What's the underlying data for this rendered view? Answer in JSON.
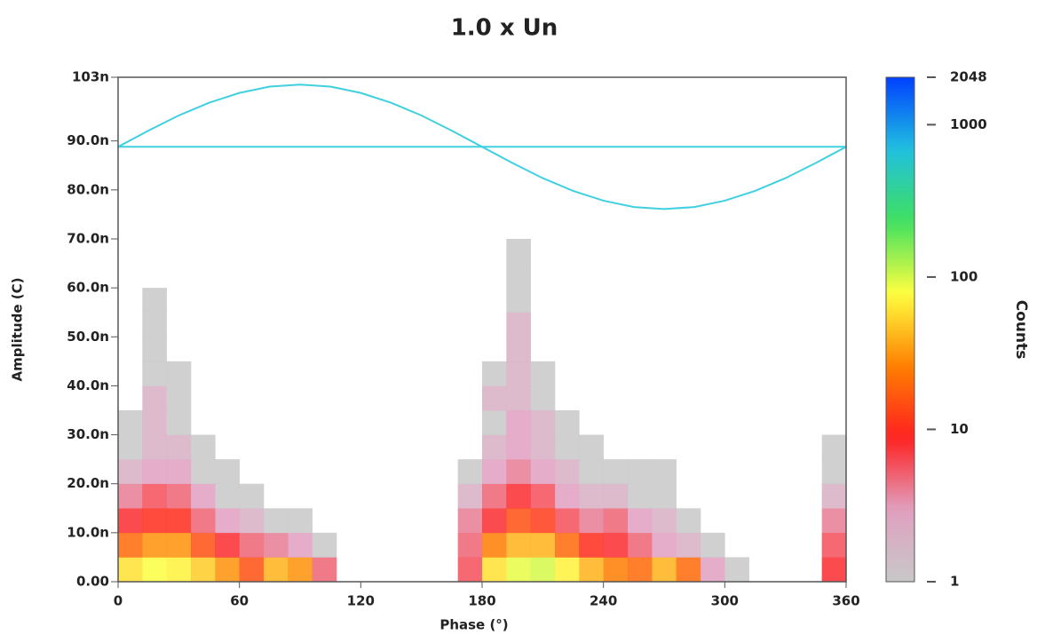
{
  "chart_data": {
    "type": "heatmap",
    "title": "1.0 x Un",
    "x_label": "Phase (°)",
    "y_label": "Amplitude (C)",
    "colorbar_label": "Counts",
    "xlim": [
      0,
      360
    ],
    "xticks": [
      0,
      60,
      120,
      180,
      240,
      300,
      360
    ],
    "ylim": [
      0,
      103
    ],
    "yticks": [
      {
        "value": 0,
        "label": "0.00"
      },
      {
        "value": 10,
        "label": "10.0n"
      },
      {
        "value": 20,
        "label": "20.0n"
      },
      {
        "value": 30,
        "label": "30.0n"
      },
      {
        "value": 40,
        "label": "40.0n"
      },
      {
        "value": 50,
        "label": "50.0n"
      },
      {
        "value": 60,
        "label": "60.0n"
      },
      {
        "value": 70,
        "label": "70.0n"
      },
      {
        "value": 80,
        "label": "80.0n"
      },
      {
        "value": 90,
        "label": "90.0n"
      },
      {
        "value": 103,
        "label": "103n"
      }
    ],
    "zlim": [
      1,
      2048
    ],
    "zticks": [
      1,
      10,
      100,
      1000,
      2048
    ],
    "z_log": true,
    "colormap": [
      "#c8c8c8",
      "#e0a0c0",
      "#ff2020",
      "#ff8000",
      "#ffff40",
      "#40e060",
      "#20c0e0",
      "#0040ff"
    ],
    "x_bins": [
      0,
      12,
      24,
      36,
      48,
      60,
      72,
      84,
      96,
      108,
      120,
      132,
      144,
      156,
      168,
      180,
      192,
      204,
      216,
      228,
      240,
      252,
      264,
      276,
      288,
      300,
      312,
      324,
      336,
      348,
      360
    ],
    "y_bins": [
      0,
      5,
      10,
      15,
      20,
      25,
      30,
      35,
      40,
      45,
      50,
      55,
      60,
      65,
      70
    ],
    "z": [
      [
        60,
        80,
        70,
        50,
        30,
        15,
        40,
        30,
        5,
        null,
        null,
        null,
        null,
        null,
        6,
        60,
        90,
        100,
        70,
        40,
        25,
        20,
        40,
        20,
        3,
        1,
        null,
        null,
        null,
        8
      ],
      [
        20,
        30,
        30,
        15,
        8,
        5,
        4,
        3,
        1,
        null,
        null,
        null,
        null,
        null,
        5,
        25,
        40,
        40,
        20,
        10,
        8,
        5,
        3,
        2,
        1,
        null,
        null,
        null,
        null,
        6
      ],
      [
        8,
        10,
        10,
        5,
        3,
        2,
        1,
        1,
        null,
        null,
        null,
        null,
        null,
        null,
        4,
        8,
        15,
        12,
        6,
        4,
        5,
        3,
        2,
        1,
        null,
        null,
        null,
        null,
        null,
        4
      ],
      [
        4,
        6,
        5,
        3,
        1,
        1,
        null,
        null,
        null,
        null,
        null,
        null,
        null,
        null,
        2,
        5,
        8,
        6,
        3,
        2,
        2,
        1,
        1,
        null,
        null,
        null,
        null,
        null,
        null,
        2
      ],
      [
        2,
        3,
        3,
        1,
        1,
        null,
        null,
        null,
        null,
        null,
        null,
        null,
        null,
        null,
        1,
        3,
        4,
        3,
        2,
        1,
        1,
        1,
        1,
        null,
        null,
        null,
        null,
        null,
        null,
        1
      ],
      [
        1,
        2,
        2,
        1,
        null,
        null,
        null,
        null,
        null,
        null,
        null,
        null,
        null,
        null,
        null,
        2,
        3,
        2,
        1,
        1,
        null,
        null,
        null,
        null,
        null,
        null,
        null,
        null,
        null,
        1
      ],
      [
        1,
        2,
        1,
        null,
        null,
        null,
        null,
        null,
        null,
        null,
        null,
        null,
        null,
        null,
        null,
        1,
        3,
        2,
        1,
        null,
        null,
        null,
        null,
        null,
        null,
        null,
        null,
        null,
        null,
        null
      ],
      [
        null,
        2,
        1,
        null,
        null,
        null,
        null,
        null,
        null,
        null,
        null,
        null,
        null,
        null,
        null,
        2,
        2,
        1,
        null,
        null,
        null,
        null,
        null,
        null,
        null,
        null,
        null,
        null,
        null,
        null
      ],
      [
        null,
        1,
        1,
        null,
        null,
        null,
        null,
        null,
        null,
        null,
        null,
        null,
        null,
        null,
        null,
        1,
        2,
        1,
        null,
        null,
        null,
        null,
        null,
        null,
        null,
        null,
        null,
        null,
        null,
        null
      ],
      [
        null,
        1,
        null,
        null,
        null,
        null,
        null,
        null,
        null,
        null,
        null,
        null,
        null,
        null,
        null,
        null,
        2,
        null,
        null,
        null,
        null,
        null,
        null,
        null,
        null,
        null,
        null,
        null,
        null,
        null
      ],
      [
        null,
        1,
        null,
        null,
        null,
        null,
        null,
        null,
        null,
        null,
        null,
        null,
        null,
        null,
        null,
        null,
        2,
        null,
        null,
        null,
        null,
        null,
        null,
        null,
        null,
        null,
        null,
        null,
        null,
        null
      ],
      [
        null,
        1,
        null,
        null,
        null,
        null,
        null,
        null,
        null,
        null,
        null,
        null,
        null,
        null,
        null,
        null,
        1,
        null,
        null,
        null,
        null,
        null,
        null,
        null,
        null,
        null,
        null,
        null,
        null,
        null
      ],
      [
        null,
        null,
        null,
        null,
        null,
        null,
        null,
        null,
        null,
        null,
        null,
        null,
        null,
        null,
        null,
        null,
        1,
        null,
        null,
        null,
        null,
        null,
        null,
        null,
        null,
        null,
        null,
        null,
        null,
        null
      ],
      [
        null,
        null,
        null,
        null,
        null,
        null,
        null,
        null,
        null,
        null,
        null,
        null,
        null,
        null,
        null,
        null,
        1,
        null,
        null,
        null,
        null,
        null,
        null,
        null,
        null,
        null,
        null,
        null,
        null,
        null
      ]
    ],
    "lines": [
      {
        "color": "#40d0e0",
        "x": [
          0,
          15,
          30,
          45,
          60,
          75,
          90,
          105,
          120,
          135,
          150,
          165,
          180,
          195,
          210,
          225,
          240,
          255,
          270,
          285,
          300,
          315,
          330,
          345,
          360
        ],
        "values": [
          88.8,
          92.1,
          95.2,
          97.8,
          99.8,
          101.1,
          101.5,
          101.1,
          99.8,
          97.8,
          95.2,
          92.1,
          88.8,
          85.5,
          82.4,
          79.8,
          77.8,
          76.5,
          76.1,
          76.5,
          77.8,
          79.8,
          82.4,
          85.5,
          88.8
        ]
      },
      {
        "color": "#40d0e0",
        "x": [
          0,
          360
        ],
        "values": [
          88.8,
          88.8
        ]
      }
    ]
  }
}
